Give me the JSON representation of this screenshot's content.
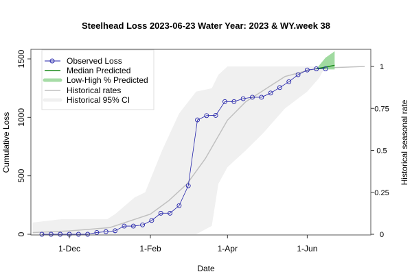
{
  "chart_data": {
    "type": "line",
    "title": "Steelhead Loss 2023-06-23  Water Year: 2023 & WY.week 38",
    "xlabel": "Date",
    "ylabel": "Cumulative Loss",
    "y2label": "Historical seasonal rate",
    "ylim": [
      0,
      1500
    ],
    "y2lim": [
      0,
      1
    ],
    "xticks": [
      {
        "date": "2022-12-01",
        "label": "1-Dec"
      },
      {
        "date": "2023-02-01",
        "label": "1-Feb"
      },
      {
        "date": "2023-04-01",
        "label": "1-Apr"
      },
      {
        "date": "2023-06-01",
        "label": "1-Jun"
      }
    ],
    "yticks": [
      "0",
      "500",
      "1000",
      "1500"
    ],
    "y2ticks": [
      "0",
      "0.25",
      "0.5",
      "0.75",
      "1"
    ],
    "legend": {
      "placement": "top-left",
      "entries": [
        "Observed Loss",
        "Median Predicted",
        "Low-High % Predicted",
        "Historical rates",
        "Historical 95% CI"
      ]
    },
    "colors": {
      "observed": "#2222aa",
      "median": "#1a8a1a",
      "band": "#8fd48f",
      "hist": "#c0c0c0",
      "ci": "#f0f0f0"
    },
    "observed": {
      "x": [
        "2022-11-10",
        "2022-11-17",
        "2022-11-24",
        "2022-12-01",
        "2022-12-08",
        "2022-12-15",
        "2022-12-22",
        "2022-12-29",
        "2023-01-05",
        "2023-01-12",
        "2023-01-19",
        "2023-01-26",
        "2023-02-02",
        "2023-02-09",
        "2023-02-16",
        "2023-02-23",
        "2023-03-02",
        "2023-03-09",
        "2023-03-16",
        "2023-03-23",
        "2023-03-30",
        "2023-04-06",
        "2023-04-13",
        "2023-04-20",
        "2023-04-27",
        "2023-05-04",
        "2023-05-11",
        "2023-05-18",
        "2023-05-25",
        "2023-06-01",
        "2023-06-08",
        "2023-06-15"
      ],
      "y": [
        0,
        0,
        0,
        0,
        0,
        0,
        15,
        22,
        30,
        70,
        70,
        80,
        118,
        180,
        180,
        245,
        415,
        978,
        1015,
        1017,
        1135,
        1135,
        1160,
        1172,
        1172,
        1208,
        1255,
        1305,
        1365,
        1405,
        1415,
        1415
      ]
    },
    "median_predicted": {
      "x": [
        "2023-06-08",
        "2023-06-22"
      ],
      "y": [
        1415,
        1445
      ]
    },
    "predicted_range": {
      "x": [
        "2023-06-08",
        "2023-06-15",
        "2023-06-22"
      ],
      "low": [
        1415,
        1410,
        1410
      ],
      "high": [
        1415,
        1510,
        1565
      ]
    },
    "historical_rate": {
      "x": [
        "2022-11-03",
        "2022-12-01",
        "2023-01-01",
        "2023-02-01",
        "2023-02-15",
        "2023-03-01",
        "2023-03-15",
        "2023-04-01",
        "2023-04-15",
        "2023-05-01",
        "2023-05-15",
        "2023-06-01",
        "2023-06-10",
        "2023-07-15"
      ],
      "y": [
        0.01,
        0.02,
        0.04,
        0.12,
        0.2,
        0.3,
        0.45,
        0.68,
        0.79,
        0.87,
        0.94,
        0.975,
        0.99,
        1
      ]
    },
    "historical_ci": {
      "x": [
        "2022-11-03",
        "2022-11-25",
        "2022-12-30",
        "2023-01-05",
        "2023-01-20",
        "2023-01-28",
        "2023-02-10",
        "2023-02-23",
        "2023-03-08",
        "2023-03-20",
        "2023-03-25",
        "2023-04-01",
        "2023-04-15",
        "2023-04-28",
        "2023-05-15",
        "2023-06-01",
        "2023-06-10",
        "2023-06-15",
        "2023-07-15"
      ],
      "low": [
        0,
        0,
        0,
        0,
        0,
        0,
        0,
        0,
        0,
        0.05,
        0.3,
        0.4,
        0.5,
        0.6,
        0.75,
        0.85,
        0.93,
        1,
        1
      ],
      "high": [
        0.07,
        0.09,
        0.09,
        0.12,
        0.22,
        0.25,
        0.5,
        0.72,
        0.85,
        0.87,
        0.95,
        1,
        1,
        1,
        1,
        1,
        1,
        1,
        1
      ]
    }
  }
}
